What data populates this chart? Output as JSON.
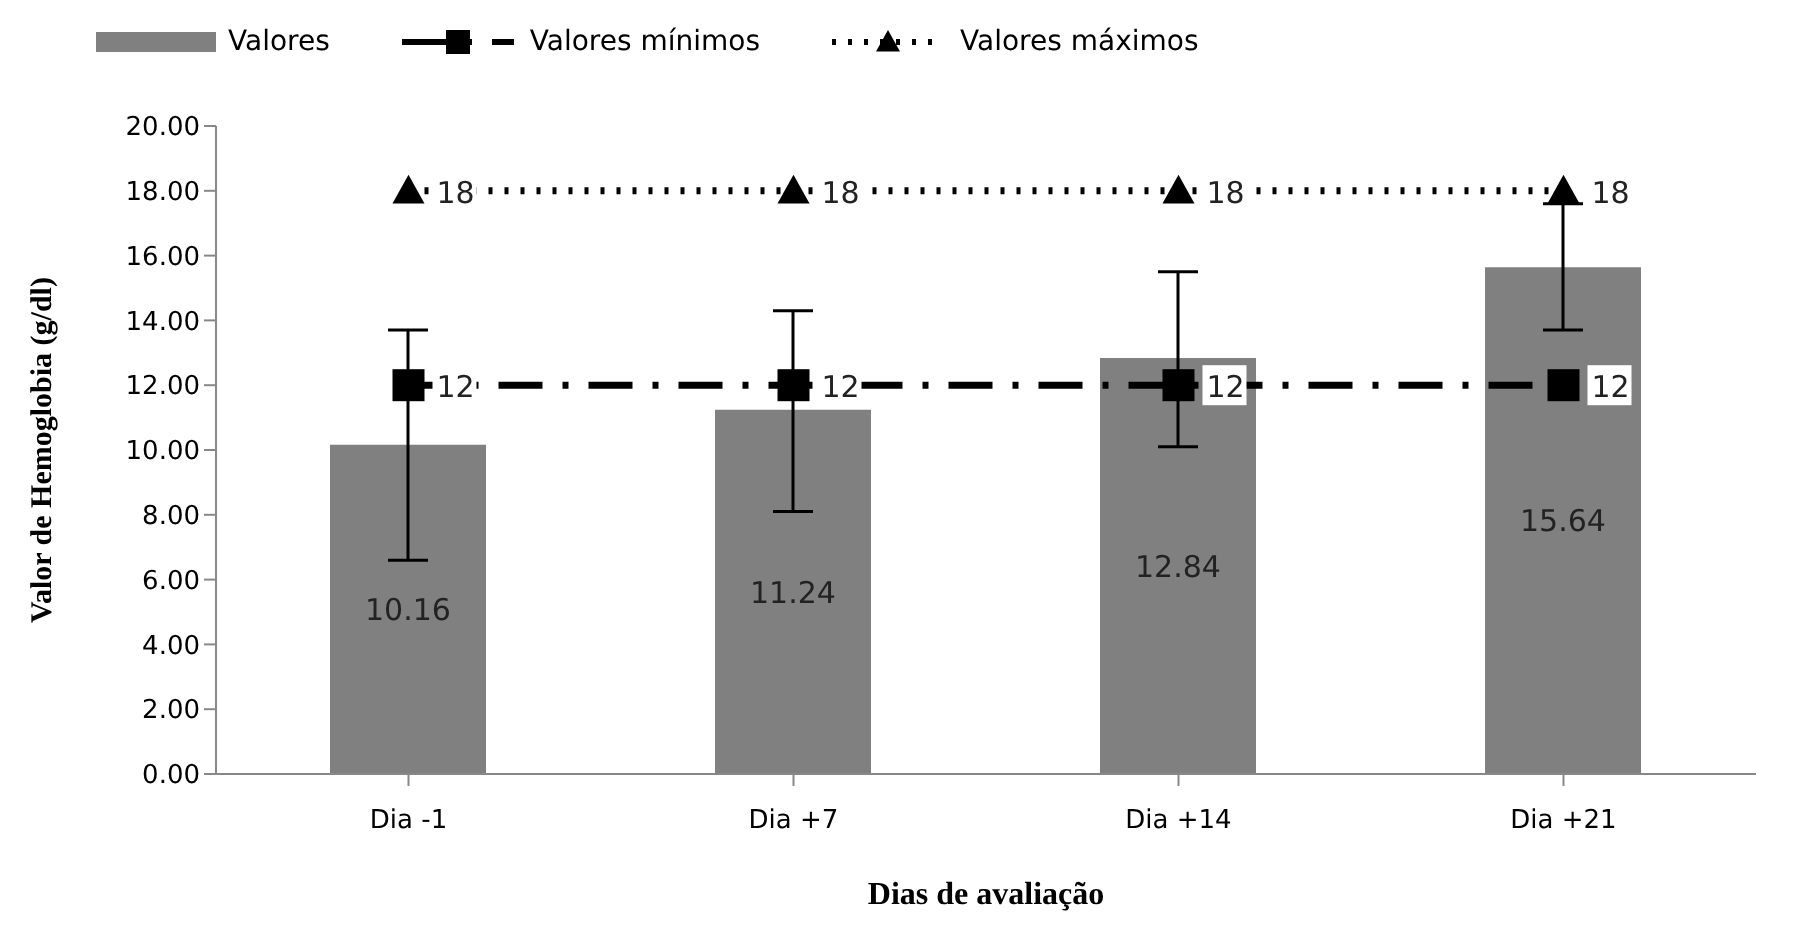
{
  "chart_data": {
    "type": "bar",
    "xlabel": "Dias de avaliação",
    "ylabel": "Valor de Hemoglobia (g/dl)",
    "categories": [
      "Dia -1",
      "Dia +7",
      "Dia +14",
      "Dia +21"
    ],
    "series": [
      {
        "name": "Valores",
        "color": "#808080",
        "values": [
          10.16,
          11.24,
          12.84,
          15.64
        ],
        "errors": [
          [
            6.6,
            13.7
          ],
          [
            8.1,
            14.3
          ],
          [
            10.1,
            15.5
          ],
          [
            13.7,
            17.6
          ]
        ]
      },
      {
        "name": "Valores mínimos",
        "type": "line",
        "color": "#000000",
        "values": [
          12,
          12,
          12,
          12
        ],
        "marker": "square",
        "line_style": "dashed"
      },
      {
        "name": "Valores máximos",
        "type": "line",
        "color": "#000000",
        "values": [
          18,
          18,
          18,
          18
        ],
        "marker": "triangle",
        "line_style": "dotted"
      }
    ],
    "ylim": [
      0,
      20
    ],
    "yticks": [
      {
        "value": 0,
        "label": "0.00"
      },
      {
        "value": 2,
        "label": "2.00"
      },
      {
        "value": 4,
        "label": "4.00"
      },
      {
        "value": 6,
        "label": "6.00"
      },
      {
        "value": 8,
        "label": "8.00"
      },
      {
        "value": 10,
        "label": "10.00"
      },
      {
        "value": 12,
        "label": "12.00"
      },
      {
        "value": 14,
        "label": "14.00"
      },
      {
        "value": 16,
        "label": "16.00"
      },
      {
        "value": 18,
        "label": "18.00"
      },
      {
        "value": 20,
        "label": "20.00"
      }
    ],
    "data_labels": true,
    "legend": "top",
    "grid": false
  }
}
